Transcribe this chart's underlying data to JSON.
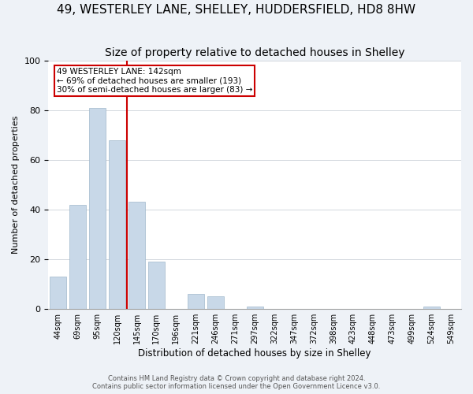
{
  "title": "49, WESTERLEY LANE, SHELLEY, HUDDERSFIELD, HD8 8HW",
  "subtitle": "Size of property relative to detached houses in Shelley",
  "xlabel": "Distribution of detached houses by size in Shelley",
  "ylabel": "Number of detached properties",
  "bar_labels": [
    "44sqm",
    "69sqm",
    "95sqm",
    "120sqm",
    "145sqm",
    "170sqm",
    "196sqm",
    "221sqm",
    "246sqm",
    "271sqm",
    "297sqm",
    "322sqm",
    "347sqm",
    "372sqm",
    "398sqm",
    "423sqm",
    "448sqm",
    "473sqm",
    "499sqm",
    "524sqm",
    "549sqm"
  ],
  "bar_values": [
    13,
    42,
    81,
    68,
    43,
    19,
    0,
    6,
    5,
    0,
    1,
    0,
    0,
    0,
    0,
    0,
    0,
    0,
    0,
    1,
    0
  ],
  "bar_color": "#c8d8e8",
  "bar_edge_color": "#a0b8cc",
  "vline_x": 3.5,
  "vline_color": "#cc0000",
  "annotation_title": "49 WESTERLEY LANE: 142sqm",
  "annotation_line1": "← 69% of detached houses are smaller (193)",
  "annotation_line2": "30% of semi-detached houses are larger (83) →",
  "annotation_box_color": "#ffffff",
  "annotation_box_edge": "#cc0000",
  "ylim": [
    0,
    100
  ],
  "footer1": "Contains HM Land Registry data © Crown copyright and database right 2024.",
  "footer2": "Contains public sector information licensed under the Open Government Licence v3.0.",
  "background_color": "#eef2f7",
  "plot_bg_color": "#ffffff",
  "title_fontsize": 11,
  "subtitle_fontsize": 10
}
